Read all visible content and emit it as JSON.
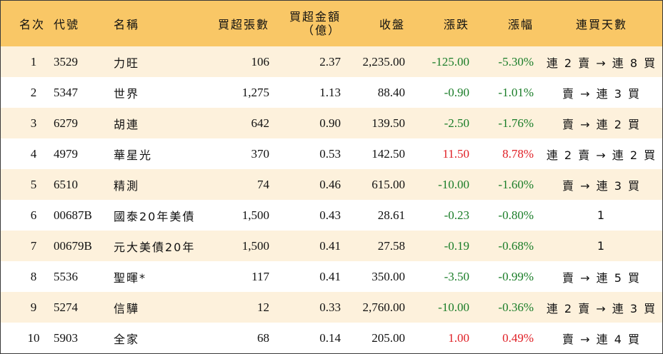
{
  "header": {
    "rank": "名次",
    "code": "代號",
    "name": "名稱",
    "volume": "買超張數",
    "amount_line1": "買超金額",
    "amount_line2": "（億）",
    "close": "收盤",
    "change": "漲跌",
    "change_pct": "漲幅",
    "consecutive": "連買天數"
  },
  "colors": {
    "header_bg": "#f9c766",
    "stripe_bg": "#fdf1dc",
    "down": "#1a7d28",
    "up": "#e01f25"
  },
  "rows": [
    {
      "rank": "1",
      "code": "3529",
      "name": "力旺",
      "volume": "106",
      "amount": "2.37",
      "close": "2,235.00",
      "change": "-125.00",
      "change_pct": "-5.30%",
      "direction": "down",
      "consecutive": "連 2 賣 → 連 8 買"
    },
    {
      "rank": "2",
      "code": "5347",
      "name": "世界",
      "volume": "1,275",
      "amount": "1.13",
      "close": "88.40",
      "change": "-0.90",
      "change_pct": "-1.01%",
      "direction": "down",
      "consecutive": "賣 → 連 3 買"
    },
    {
      "rank": "3",
      "code": "6279",
      "name": "胡連",
      "volume": "642",
      "amount": "0.90",
      "close": "139.50",
      "change": "-2.50",
      "change_pct": "-1.76%",
      "direction": "down",
      "consecutive": "賣 → 連 2 買"
    },
    {
      "rank": "4",
      "code": "4979",
      "name": "華星光",
      "volume": "370",
      "amount": "0.53",
      "close": "142.50",
      "change": "11.50",
      "change_pct": "8.78%",
      "direction": "up",
      "consecutive": "連 2 賣 → 連 2 買"
    },
    {
      "rank": "5",
      "code": "6510",
      "name": "精測",
      "volume": "74",
      "amount": "0.46",
      "close": "615.00",
      "change": "-10.00",
      "change_pct": "-1.60%",
      "direction": "down",
      "consecutive": "賣 → 連 3 買"
    },
    {
      "rank": "6",
      "code": "00687B",
      "name": "國泰20年美債",
      "volume": "1,500",
      "amount": "0.43",
      "close": "28.61",
      "change": "-0.23",
      "change_pct": "-0.80%",
      "direction": "down",
      "consecutive": "1"
    },
    {
      "rank": "7",
      "code": "00679B",
      "name": "元大美債20年",
      "volume": "1,500",
      "amount": "0.41",
      "close": "27.58",
      "change": "-0.19",
      "change_pct": "-0.68%",
      "direction": "down",
      "consecutive": "1"
    },
    {
      "rank": "8",
      "code": "5536",
      "name": "聖暉*",
      "volume": "117",
      "amount": "0.41",
      "close": "350.00",
      "change": "-3.50",
      "change_pct": "-0.99%",
      "direction": "down",
      "consecutive": "賣 → 連 5 買"
    },
    {
      "rank": "9",
      "code": "5274",
      "name": "信驊",
      "volume": "12",
      "amount": "0.33",
      "close": "2,760.00",
      "change": "-10.00",
      "change_pct": "-0.36%",
      "direction": "down",
      "consecutive": "連 2 賣 → 連 3 買"
    },
    {
      "rank": "10",
      "code": "5903",
      "name": "全家",
      "volume": "68",
      "amount": "0.14",
      "close": "205.00",
      "change": "1.00",
      "change_pct": "0.49%",
      "direction": "up",
      "consecutive": "賣 → 連 4 買"
    }
  ]
}
